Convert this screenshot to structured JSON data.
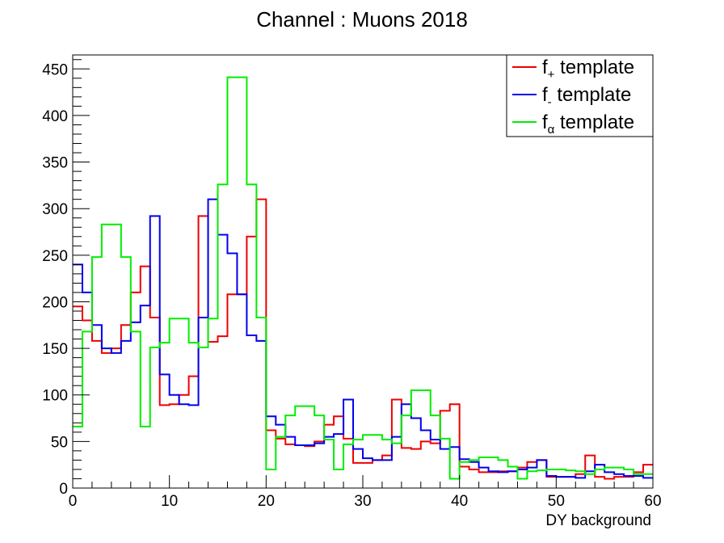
{
  "chart_data": {
    "type": "line",
    "title": "Channel : Muons 2018",
    "xlabel": "DY background",
    "ylabel": "",
    "xlim": [
      0,
      60
    ],
    "ylim": [
      0,
      465
    ],
    "x_ticks": [
      0,
      10,
      20,
      30,
      40,
      50,
      60
    ],
    "y_ticks": [
      0,
      50,
      100,
      150,
      200,
      250,
      300,
      350,
      400,
      450
    ],
    "legend": {
      "position": "top-right"
    },
    "bin_edges": [
      0,
      1,
      2,
      3,
      4,
      5,
      6,
      7,
      8,
      9,
      10,
      11,
      12,
      13,
      14,
      15,
      16,
      17,
      18,
      19,
      20,
      21,
      22,
      23,
      24,
      25,
      26,
      27,
      28,
      29,
      30,
      31,
      32,
      33,
      34,
      35,
      36,
      37,
      38,
      39,
      40,
      41,
      42,
      43,
      44,
      45,
      46,
      47,
      48,
      49,
      50,
      51,
      52,
      53,
      54,
      55,
      56,
      57,
      58,
      59,
      60
    ],
    "series": [
      {
        "name": "f+ template",
        "label_main": "f",
        "label_sub": "+",
        "label_rest": " template",
        "color": "#ee0000",
        "values": [
          195,
          180,
          158,
          145,
          150,
          175,
          210,
          238,
          183,
          89,
          90,
          100,
          120,
          292,
          157,
          163,
          208,
          208,
          270,
          310,
          62,
          53,
          47,
          46,
          45,
          50,
          68,
          77,
          53,
          27,
          27,
          30,
          35,
          95,
          43,
          42,
          50,
          48,
          83,
          90,
          23,
          20,
          17,
          17,
          18,
          18,
          22,
          28,
          30,
          12,
          12,
          12,
          15,
          35,
          12,
          10,
          12,
          12,
          17,
          25
        ]
      },
      {
        "name": "f- template",
        "label_main": "f",
        "label_sub": "-",
        "label_rest": " template",
        "color": "#0000ee",
        "values": [
          240,
          210,
          175,
          150,
          145,
          158,
          178,
          196,
          292,
          122,
          100,
          90,
          89,
          183,
          310,
          272,
          252,
          208,
          164,
          158,
          77,
          68,
          55,
          46,
          46,
          48,
          55,
          58,
          95,
          42,
          32,
          30,
          30,
          55,
          90,
          75,
          62,
          52,
          42,
          44,
          31,
          28,
          22,
          18,
          17,
          18,
          20,
          22,
          30,
          13,
          12,
          12,
          11,
          18,
          25,
          17,
          15,
          13,
          13,
          11
        ]
      },
      {
        "name": "fα template",
        "label_main": "f",
        "label_sub": "α",
        "label_rest": " template",
        "color": "#00ee00",
        "values": [
          66,
          168,
          248,
          283,
          283,
          248,
          168,
          66,
          151,
          156,
          182,
          182,
          156,
          151,
          182,
          326,
          441,
          441,
          326,
          183,
          20,
          55,
          78,
          88,
          88,
          78,
          52,
          20,
          47,
          52,
          57,
          57,
          52,
          48,
          78,
          105,
          105,
          78,
          53,
          10,
          28,
          30,
          33,
          33,
          30,
          23,
          10,
          18,
          19,
          20,
          20,
          19,
          18,
          15,
          20,
          22,
          22,
          20,
          15,
          15
        ]
      }
    ]
  }
}
